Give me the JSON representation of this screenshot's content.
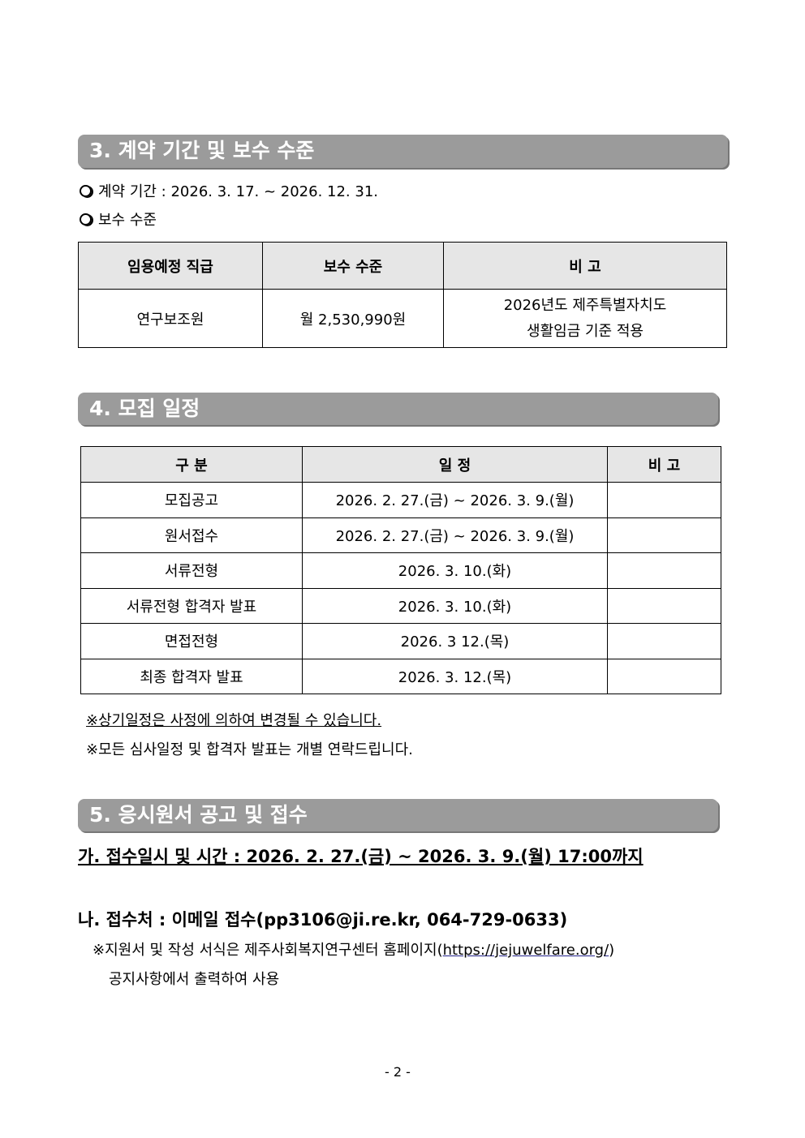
{
  "section3": {
    "title": "3.  계약 기간 및 보수 수준",
    "period": "계약 기간 : 2026. 3. 17. ~ 2026. 12. 31.",
    "pay_heading": "보수 수준",
    "table": {
      "headers": [
        "임용예정 직급",
        "보수 수준",
        "비  고"
      ],
      "row": {
        "position": "연구보조원",
        "pay": "월 2,530,990원",
        "note1": "2026년도 제주특별자치도",
        "note2": "생활임금 기준 적용"
      }
    }
  },
  "section4": {
    "title": "4. 모집 일정",
    "headers": [
      "구   분",
      "일     정",
      "비  고"
    ],
    "rows": [
      {
        "item": "모집공고",
        "date": "2026. 2. 27.(금) ~ 2026. 3. 9.(월)",
        "note": ""
      },
      {
        "item": "원서접수",
        "date": "2026. 2. 27.(금) ~ 2026. 3. 9.(월)",
        "note": ""
      },
      {
        "item": "서류전형",
        "date": "2026. 3. 10.(화)",
        "note": ""
      },
      {
        "item": "서류전형 합격자 발표",
        "date": "2026. 3. 10.(화)",
        "note": ""
      },
      {
        "item": "면접전형",
        "date": "2026. 3 12.(목)",
        "note": ""
      },
      {
        "item": "최종 합격자 발표",
        "date": "2026. 3. 12.(목)",
        "note": ""
      }
    ],
    "note1": "※상기일정은 사정에 의하여 변경될 수 있습니다.",
    "note2": "※모든 심사일정 및 합격자 발표는 개별 연락드립니다."
  },
  "section5": {
    "title": "5. 응시원서 공고 및 접수",
    "ga": "가. 접수일시 및 시간 : 2026. 2. 27.(금) ~ 2026. 3. 9.(월) 17:00까지",
    "na": "나. 접수처 : 이메일 접수(pp3106@ji.re.kr, 064-729-0633)",
    "note_pre": "※지원서 및 작성 서식은 제주사회복지연구센터 홈페이지(",
    "link": "https://jejuwelfare.org/",
    "note_post": ")",
    "note_line2": "공지사항에서 출력하여 사용"
  },
  "page_number": "- 2 -"
}
